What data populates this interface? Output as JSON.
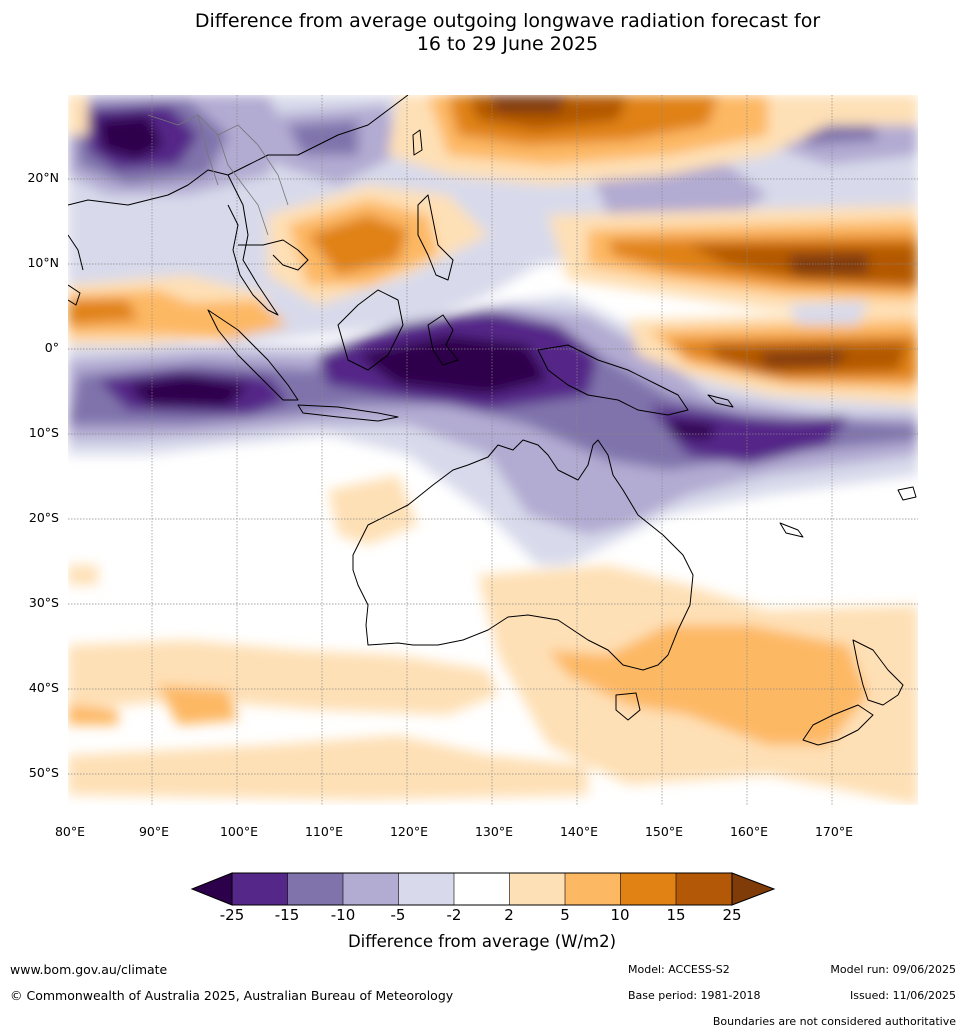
{
  "title_line1": "Difference from average outgoing longwave radiation forecast for",
  "title_line2": "16 to 29 June 2025",
  "lat_labels": [
    "20°N",
    "10°N",
    "0°",
    "10°S",
    "20°S",
    "30°S",
    "40°S",
    "50°S"
  ],
  "lon_labels": [
    "80°E",
    "90°E",
    "100°E",
    "110°E",
    "120°E",
    "130°E",
    "140°E",
    "150°E",
    "160°E",
    "170°E"
  ],
  "colorbar": {
    "ticks": [
      "-25",
      "-15",
      "-10",
      "-5",
      "-2",
      "2",
      "5",
      "10",
      "15",
      "25"
    ],
    "colors": [
      "#2d004b",
      "#542788",
      "#8073ac",
      "#b2abd2",
      "#d8daeb",
      "#ffffff",
      "#fee0b6",
      "#fdb863",
      "#e08214",
      "#b35806",
      "#7f3b08"
    ],
    "label": "Difference from average (W/m2)"
  },
  "footer": {
    "website": "www.bom.gov.au/climate",
    "copyright": "© Commonwealth of Australia 2025, Australian Bureau of Meteorology",
    "model": "Model: ACCESS-S2",
    "base_period": "Base period: 1981-2018",
    "model_run": "Model run: 09/06/2025",
    "issued": "Issued: 11/06/2025",
    "disclaimer": "Boundaries are not considered authoritative"
  }
}
